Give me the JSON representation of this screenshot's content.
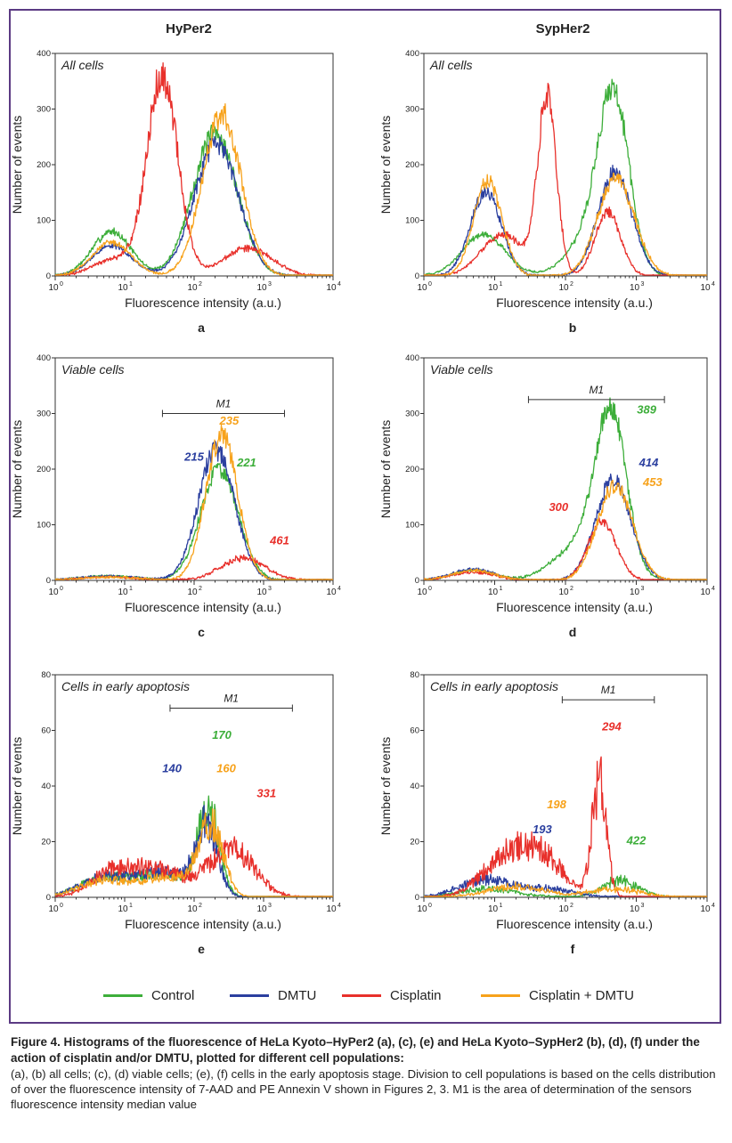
{
  "column_titles": [
    "HyPer2",
    "SypHer2"
  ],
  "legend": [
    {
      "label": "Control",
      "color": "#3dae3a"
    },
    {
      "label": "DMTU",
      "color": "#2b3f9f"
    },
    {
      "label": "Cisplatin",
      "color": "#e8302b"
    },
    {
      "label": "Cisplatin + DMTU",
      "color": "#f7a21b"
    }
  ],
  "caption": {
    "title": "Figure 4. Histograms of the fluorescence of HeLa Kyoto–HyPer2 (a), (c), (e) and HeLa Kyoto–SypHer2 (b), (d), (f) under the action of cisplatin and/or DMTU, plotted for different cell populations:",
    "body": "(a), (b) all cells; (c), (d) viable cells; (e), (f) cells in the early apoptosis stage. Division to cell populations is based on the cells distribution of over the fluorescence intensity of 7-AAD and PE Annexin V shown in Figures 2, 3. M1 is the area of determination of the sensors fluorescence intensity median value"
  },
  "chart_data": [
    {
      "id": "a",
      "type": "line",
      "panel_label": "a",
      "population": "All cells",
      "xlabel": "Fluorescence intensity (a.u.)",
      "ylabel": "Number of events",
      "xscale": "log",
      "xlim": [
        1,
        10000
      ],
      "ylim": [
        0,
        400
      ],
      "yticks": [
        "0",
        "100",
        "200",
        "300",
        "400"
      ],
      "xticks": [
        "10",
        "10",
        "10",
        "10",
        "10"
      ],
      "xtick_exponents": [
        "0",
        "1",
        "2",
        "3",
        "4"
      ],
      "series": [
        {
          "legend_index": 0,
          "peaks": [
            [
              6.5,
              80,
              0.28
            ],
            [
              200,
              255,
              0.32
            ]
          ],
          "noise": 0.08
        },
        {
          "legend_index": 1,
          "peaks": [
            [
              6.5,
              55,
              0.28
            ],
            [
              210,
              235,
              0.32
            ]
          ],
          "noise": 0.08
        },
        {
          "legend_index": 2,
          "peaks": [
            [
              35,
              360,
              0.22
            ],
            [
              600,
              50,
              0.35
            ],
            [
              7,
              30,
              0.3
            ]
          ],
          "noise": 0.1
        },
        {
          "legend_index": 3,
          "peaks": [
            [
              6.5,
              60,
              0.28
            ],
            [
              250,
              290,
              0.28
            ]
          ],
          "noise": 0.08
        }
      ],
      "median_labels": [],
      "m1": null
    },
    {
      "id": "b",
      "type": "line",
      "panel_label": "b",
      "population": "All cells",
      "xlabel": "Fluorescence intensity (a.u.)",
      "ylabel": "Number of events",
      "xscale": "log",
      "xlim": [
        1,
        10000
      ],
      "ylim": [
        0,
        400
      ],
      "yticks": [
        "0",
        "100",
        "200",
        "300",
        "400"
      ],
      "xticks": [
        "10",
        "10",
        "10",
        "10",
        "10"
      ],
      "xtick_exponents": [
        "0",
        "1",
        "2",
        "3",
        "4"
      ],
      "series": [
        {
          "legend_index": 0,
          "peaks": [
            [
              7,
              75,
              0.3
            ],
            [
              480,
              310,
              0.22
            ],
            [
              200,
              60,
              0.3
            ]
          ],
          "noise": 0.07
        },
        {
          "legend_index": 1,
          "peaks": [
            [
              7.5,
              150,
              0.22
            ],
            [
              500,
              185,
              0.24
            ]
          ],
          "noise": 0.08
        },
        {
          "legend_index": 2,
          "peaks": [
            [
              13,
              75,
              0.3
            ],
            [
              55,
              320,
              0.13
            ],
            [
              400,
              115,
              0.18
            ]
          ],
          "noise": 0.08
        },
        {
          "legend_index": 3,
          "peaks": [
            [
              8,
              170,
              0.2
            ],
            [
              520,
              175,
              0.26
            ]
          ],
          "noise": 0.08
        }
      ],
      "median_labels": [],
      "m1": null
    },
    {
      "id": "c",
      "type": "line",
      "panel_label": "c",
      "population": "Viable cells",
      "xlabel": "Fluorescence intensity (a.u.)",
      "ylabel": "Number of events",
      "xscale": "log",
      "xlim": [
        1,
        10000
      ],
      "ylim": [
        0,
        400
      ],
      "yticks": [
        "0",
        "100",
        "200",
        "300",
        "400"
      ],
      "xticks": [
        "10",
        "10",
        "10",
        "10",
        "10"
      ],
      "xtick_exponents": [
        "0",
        "1",
        "2",
        "3",
        "4"
      ],
      "series": [
        {
          "legend_index": 0,
          "peaks": [
            [
              230,
              200,
              0.27
            ],
            [
              6,
              8,
              0.4
            ]
          ],
          "noise": 0.08
        },
        {
          "legend_index": 1,
          "peaks": [
            [
              210,
              235,
              0.26
            ],
            [
              6,
              8,
              0.4
            ]
          ],
          "noise": 0.08
        },
        {
          "legend_index": 2,
          "peaks": [
            [
              500,
              40,
              0.32
            ],
            [
              6,
              6,
              0.4
            ]
          ],
          "noise": 0.12
        },
        {
          "legend_index": 3,
          "peaks": [
            [
              250,
              260,
              0.23
            ],
            [
              6,
              6,
              0.4
            ]
          ],
          "noise": 0.08
        }
      ],
      "median_labels": [
        {
          "text": "215",
          "legend_index": 1,
          "x": 100,
          "y": 215
        },
        {
          "text": "235",
          "legend_index": 3,
          "x": 320,
          "y": 280
        },
        {
          "text": "221",
          "legend_index": 0,
          "x": 570,
          "y": 205
        },
        {
          "text": "461",
          "legend_index": 2,
          "x": 1700,
          "y": 65
        }
      ],
      "m1": {
        "label": "M1",
        "x1": 35,
        "x2": 2000,
        "y": 300
      }
    },
    {
      "id": "d",
      "type": "line",
      "panel_label": "d",
      "population": "Viable cells",
      "xlabel": "Fluorescence intensity (a.u.)",
      "ylabel": "Number of events",
      "xscale": "log",
      "xlim": [
        1,
        10000
      ],
      "ylim": [
        0,
        400
      ],
      "yticks": [
        "0",
        "100",
        "200",
        "300",
        "400"
      ],
      "xticks": [
        "10",
        "10",
        "10",
        "10",
        "10"
      ],
      "xtick_exponents": [
        "0",
        "1",
        "2",
        "3",
        "4"
      ],
      "series": [
        {
          "legend_index": 0,
          "peaks": [
            [
              440,
              290,
              0.22
            ],
            [
              150,
              60,
              0.35
            ],
            [
              5,
              18,
              0.3
            ]
          ],
          "noise": 0.07
        },
        {
          "legend_index": 1,
          "peaks": [
            [
              470,
              180,
              0.25
            ],
            [
              5,
              20,
              0.3
            ]
          ],
          "noise": 0.08
        },
        {
          "legend_index": 2,
          "peaks": [
            [
              330,
              105,
              0.2
            ],
            [
              5,
              15,
              0.3
            ]
          ],
          "noise": 0.1
        },
        {
          "legend_index": 3,
          "peaks": [
            [
              500,
              170,
              0.25
            ],
            [
              5,
              18,
              0.3
            ]
          ],
          "noise": 0.08
        }
      ],
      "median_labels": [
        {
          "text": "389",
          "legend_index": 0,
          "x": 1400,
          "y": 300
        },
        {
          "text": "414",
          "legend_index": 1,
          "x": 1500,
          "y": 205
        },
        {
          "text": "453",
          "legend_index": 3,
          "x": 1700,
          "y": 170
        },
        {
          "text": "300",
          "legend_index": 2,
          "x": 80,
          "y": 125
        }
      ],
      "m1": {
        "label": "M1",
        "x1": 30,
        "x2": 2500,
        "y": 325
      }
    },
    {
      "id": "e",
      "type": "line",
      "panel_label": "e",
      "population": "Cells in early apoptosis",
      "xlabel": "Fluorescence intensity (a.u.)",
      "ylabel": "Number of events",
      "xscale": "log",
      "xlim": [
        1,
        10000
      ],
      "ylim": [
        0,
        80
      ],
      "yticks": [
        "0",
        "20",
        "40",
        "60",
        "80"
      ],
      "xticks": [
        "10",
        "10",
        "10",
        "10",
        "10"
      ],
      "xtick_exponents": [
        "0",
        "1",
        "2",
        "3",
        "4"
      ],
      "series": [
        {
          "legend_index": 0,
          "peaks": [
            [
              160,
              32,
              0.15
            ],
            [
              5,
              7,
              0.35
            ],
            [
              35,
              8,
              0.35
            ]
          ],
          "noise": 0.25
        },
        {
          "legend_index": 1,
          "peaks": [
            [
              150,
              25,
              0.16
            ],
            [
              5,
              7,
              0.35
            ],
            [
              35,
              9,
              0.35
            ]
          ],
          "noise": 0.25
        },
        {
          "legend_index": 2,
          "peaks": [
            [
              350,
              17,
              0.32
            ],
            [
              25,
              10,
              0.45
            ],
            [
              6,
              6,
              0.3
            ]
          ],
          "noise": 0.3
        },
        {
          "legend_index": 3,
          "peaks": [
            [
              170,
              26,
              0.18
            ],
            [
              5,
              6,
              0.35
            ],
            [
              40,
              7,
              0.35
            ]
          ],
          "noise": 0.25
        }
      ],
      "median_labels": [
        {
          "text": "140",
          "legend_index": 1,
          "x": 48,
          "y": 45
        },
        {
          "text": "170",
          "legend_index": 0,
          "x": 250,
          "y": 57
        },
        {
          "text": "160",
          "legend_index": 3,
          "x": 290,
          "y": 45
        },
        {
          "text": "331",
          "legend_index": 2,
          "x": 1100,
          "y": 36
        }
      ],
      "m1": {
        "label": "M1",
        "x1": 45,
        "x2": 2600,
        "y": 68
      }
    },
    {
      "id": "f",
      "type": "line",
      "panel_label": "f",
      "population": "Cells in early apoptosis",
      "xlabel": "Fluorescence intensity (a.u.)",
      "ylabel": "Number of events",
      "xscale": "log",
      "xlim": [
        1,
        10000
      ],
      "ylim": [
        0,
        80
      ],
      "yticks": [
        "0",
        "20",
        "40",
        "60",
        "80"
      ],
      "xticks": [
        "10",
        "10",
        "10",
        "10",
        "10"
      ],
      "xtick_exponents": [
        "0",
        "1",
        "2",
        "3",
        "4"
      ],
      "series": [
        {
          "legend_index": 0,
          "peaks": [
            [
              600,
              6,
              0.25
            ],
            [
              8,
              3,
              0.4
            ]
          ],
          "noise": 0.35
        },
        {
          "legend_index": 1,
          "peaks": [
            [
              7,
              6,
              0.35
            ],
            [
              50,
              3,
              0.4
            ]
          ],
          "noise": 0.35
        },
        {
          "legend_index": 2,
          "peaks": [
            [
              300,
              42,
              0.1
            ],
            [
              15,
              14,
              0.35
            ],
            [
              50,
              12,
              0.3
            ]
          ],
          "noise": 0.3
        },
        {
          "legend_index": 3,
          "peaks": [
            [
              20,
              4,
              0.4
            ],
            [
              500,
              3,
              0.35
            ]
          ],
          "noise": 0.35
        }
      ],
      "median_labels": [
        {
          "text": "294",
          "legend_index": 2,
          "x": 450,
          "y": 60
        },
        {
          "text": "198",
          "legend_index": 3,
          "x": 75,
          "y": 32
        },
        {
          "text": "193",
          "legend_index": 1,
          "x": 47,
          "y": 23
        },
        {
          "text": "422",
          "legend_index": 0,
          "x": 1000,
          "y": 19
        }
      ],
      "m1": {
        "label": "M1",
        "x1": 90,
        "x2": 1800,
        "y": 71
      }
    }
  ]
}
